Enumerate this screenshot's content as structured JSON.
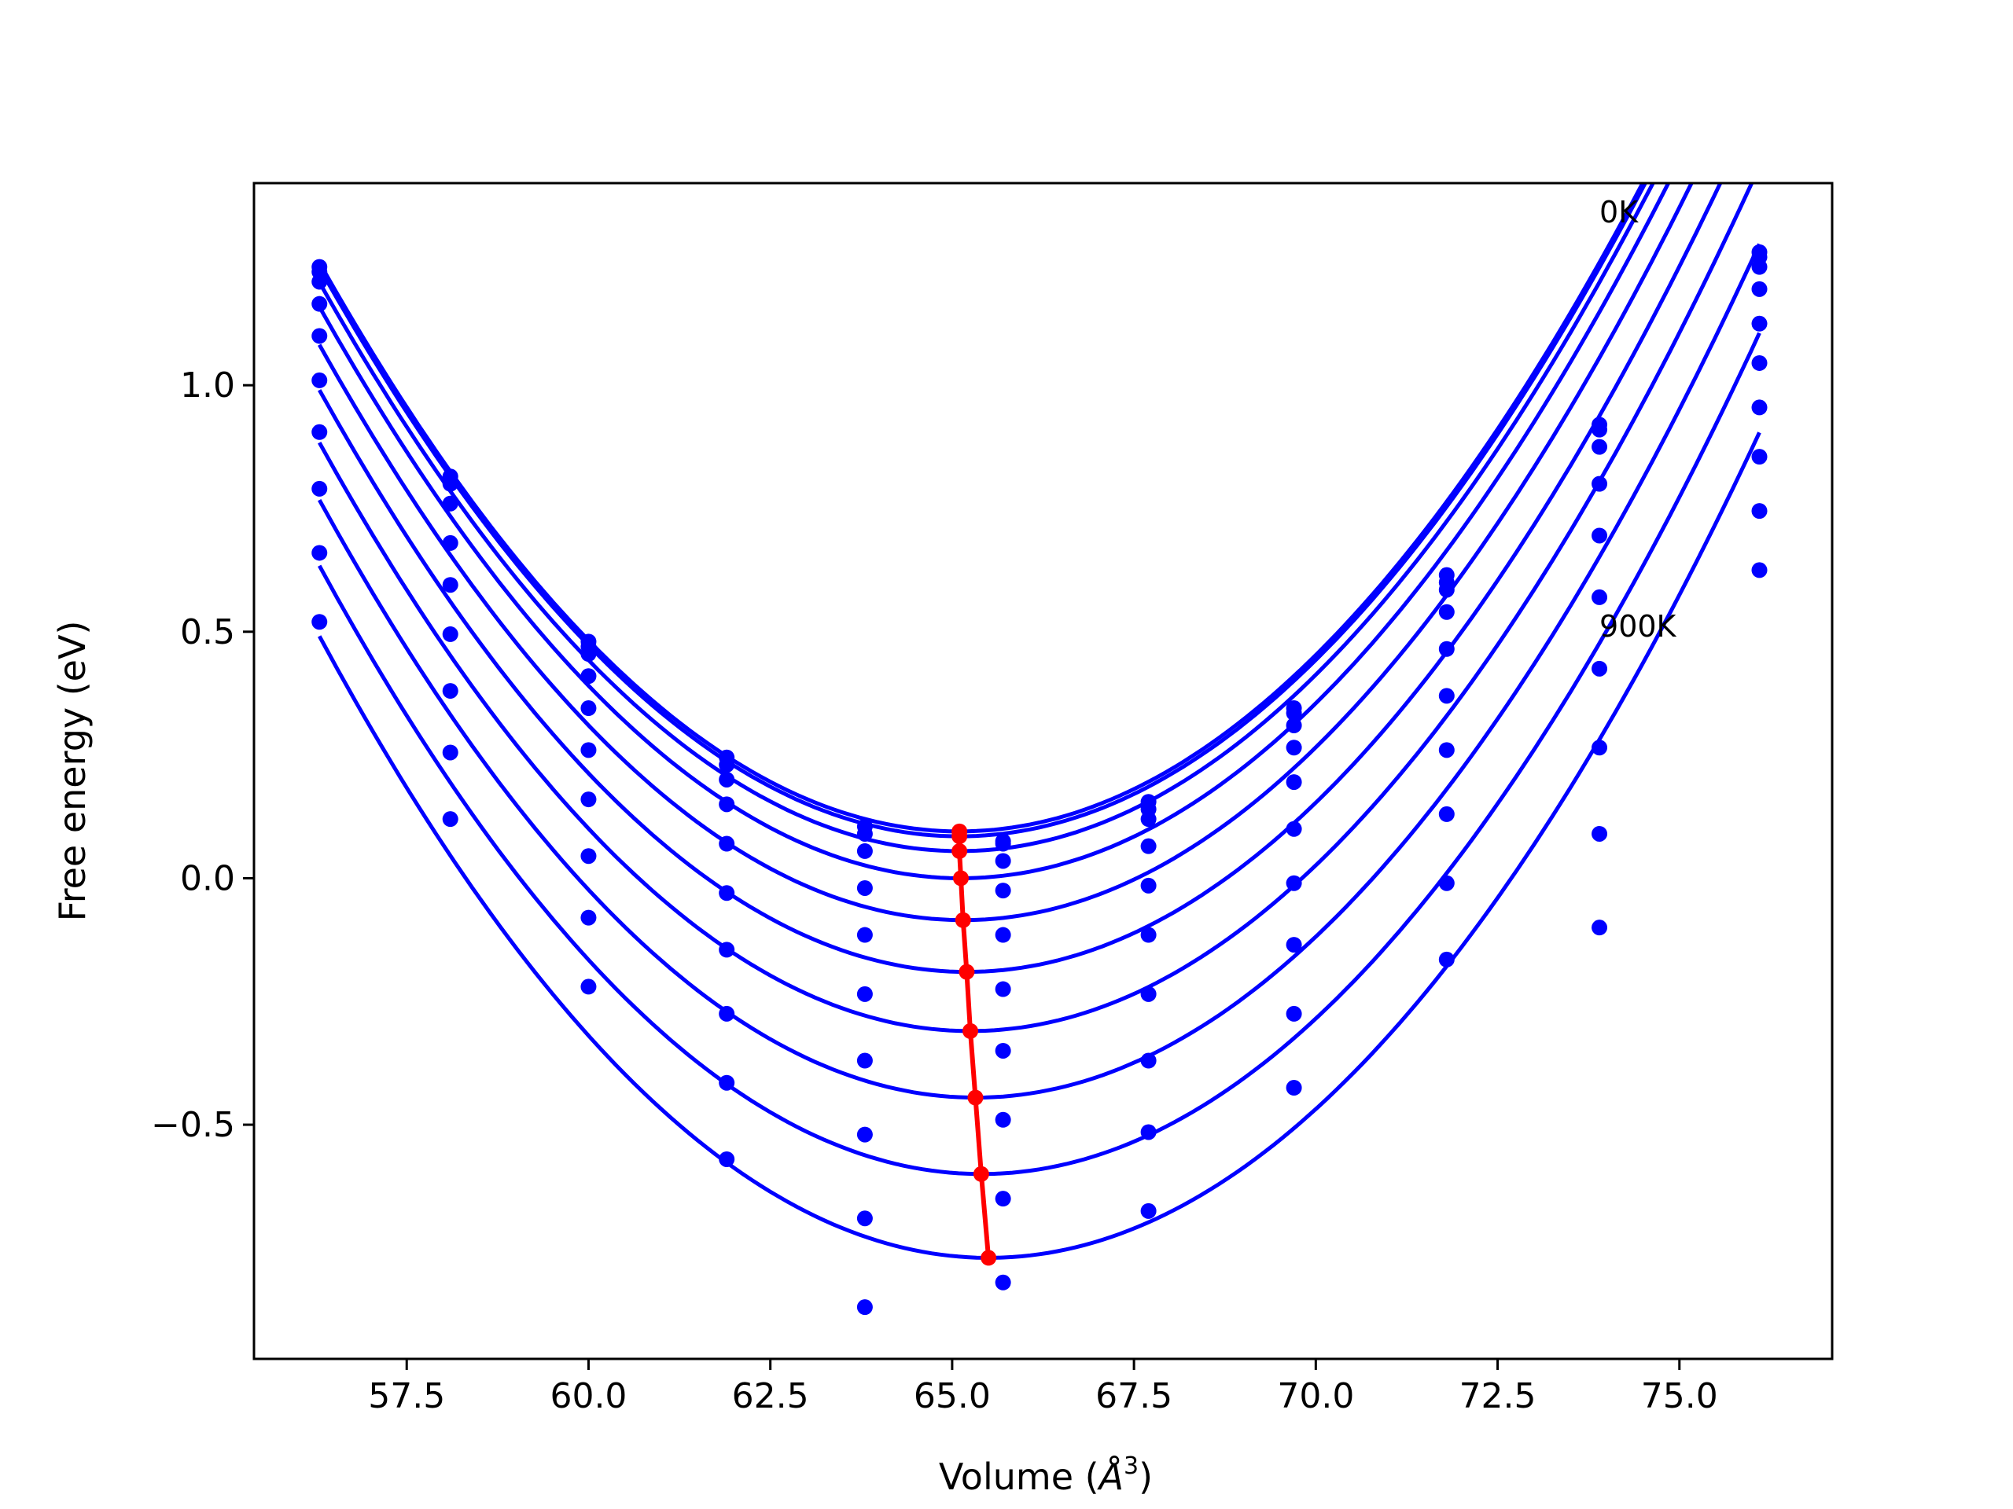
{
  "chart_data": {
    "type": "line",
    "title": "",
    "xlabel": "Volume (",
    "xlabel_unit": "Å",
    "xlabel_sup": "3",
    "xlabel_close": ")",
    "ylabel": "Free energy (eV)",
    "xlim": [
      55.4,
      77.1
    ],
    "ylim": [
      -0.975,
      1.41
    ],
    "xticks": [
      57.5,
      60.0,
      62.5,
      65.0,
      67.5,
      70.0,
      72.5,
      75.0
    ],
    "xtick_labels": [
      "57.5",
      "60.0",
      "62.5",
      "65.0",
      "67.5",
      "70.0",
      "72.5",
      "75.0"
    ],
    "yticks": [
      -0.5,
      0.0,
      0.5,
      1.0
    ],
    "ytick_labels": [
      "−0.5",
      "0.0",
      "0.5",
      "1.0"
    ],
    "grid": false,
    "annotations": [
      {
        "text": "0K",
        "x": 73.9,
        "y": 1.33
      },
      {
        "text": "900K",
        "x": 73.9,
        "y": 0.49
      }
    ],
    "curve_color": "#0000ff",
    "minima_color": "#ff0000",
    "volumes": [
      56.3,
      58.1,
      60.0,
      61.9,
      63.8,
      65.7,
      67.7,
      69.7,
      71.8,
      73.9,
      76.1
    ],
    "curve_x_range": [
      56.3,
      76.1
    ],
    "series": [
      {
        "fit": {
          "v0": 65.1,
          "e0": 0.095,
          "k": 0.0149
        },
        "points": [
          1.24,
          0.815,
          0.48,
          0.245,
          0.105,
          0.075,
          0.155,
          0.345,
          0.615,
          0.92,
          1.27
        ]
      },
      {
        "fit": {
          "v0": 65.1,
          "e0": 0.085,
          "k": 0.0149
        },
        "points": [
          1.23,
          0.8,
          0.47,
          0.23,
          0.09,
          0.07,
          0.14,
          0.335,
          0.6,
          0.91,
          1.26
        ]
      },
      {
        "fit": {
          "v0": 65.1,
          "e0": 0.055,
          "k": 0.0149
        },
        "points": [
          1.21,
          0.76,
          0.455,
          0.2,
          0.055,
          0.035,
          0.12,
          0.31,
          0.585,
          0.875,
          1.24
        ]
      },
      {
        "fit": {
          "v0": 65.12,
          "e0": 0.0,
          "k": 0.0149
        },
        "points": [
          1.165,
          0.68,
          0.41,
          0.15,
          -0.02,
          -0.025,
          0.065,
          0.265,
          0.54,
          0.8,
          1.195
        ]
      },
      {
        "fit": {
          "v0": 65.15,
          "e0": -0.085,
          "k": 0.0149
        },
        "points": [
          1.1,
          0.595,
          0.345,
          0.07,
          -0.115,
          -0.115,
          -0.015,
          0.195,
          0.465,
          0.695,
          1.125
        ]
      },
      {
        "fit": {
          "v0": 65.2,
          "e0": -0.19,
          "k": 0.0149
        },
        "points": [
          1.01,
          0.495,
          0.26,
          -0.03,
          -0.235,
          -0.225,
          -0.115,
          0.1,
          0.37,
          0.57,
          1.045
        ]
      },
      {
        "fit": {
          "v0": 65.25,
          "e0": -0.31,
          "k": 0.0149
        },
        "points": [
          0.905,
          0.38,
          0.16,
          -0.145,
          -0.37,
          -0.35,
          -0.235,
          -0.01,
          0.26,
          0.425,
          0.955
        ]
      },
      {
        "fit": {
          "v0": 65.32,
          "e0": -0.445,
          "k": 0.0149
        },
        "points": [
          0.79,
          0.255,
          0.045,
          -0.275,
          -0.52,
          -0.49,
          -0.37,
          -0.135,
          0.13,
          0.265,
          0.855
        ]
      },
      {
        "fit": {
          "v0": 65.4,
          "e0": -0.6,
          "k": 0.0149
        },
        "points": [
          0.66,
          0.12,
          -0.08,
          -0.415,
          -0.69,
          -0.65,
          -0.515,
          -0.275,
          -0.01,
          0.09,
          0.745
        ]
      },
      {
        "fit": {
          "v0": 65.5,
          "e0": -0.77,
          "k": 0.0149
        },
        "points": [
          0.52,
          null,
          -0.22,
          -0.57,
          -0.87,
          -0.82,
          -0.675,
          -0.425,
          -0.165,
          -0.1,
          0.625
        ]
      }
    ],
    "minima": {
      "x": [
        65.1,
        65.1,
        65.1,
        65.12,
        65.15,
        65.2,
        65.25,
        65.32,
        65.4,
        65.5
      ],
      "y": [
        0.095,
        0.085,
        0.055,
        0.0,
        -0.085,
        -0.19,
        -0.31,
        -0.445,
        -0.6,
        -0.77
      ]
    }
  }
}
